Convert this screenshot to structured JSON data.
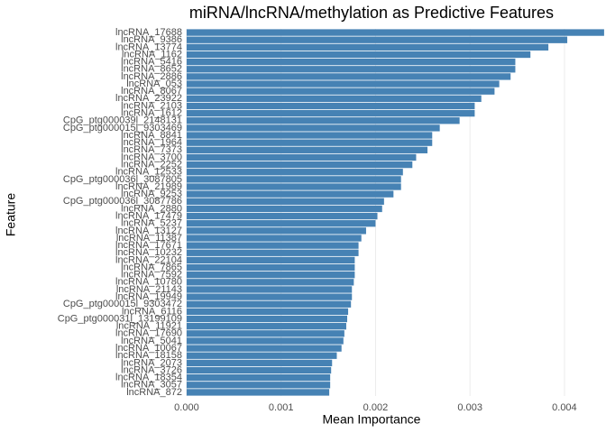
{
  "chart_data": {
    "type": "barh",
    "title": "miRNA/lncRNA/methylation as Predictive Features",
    "xlabel": "Mean Importance",
    "ylabel": "Feature",
    "color": "#4682b4",
    "grid": true,
    "xlim": [
      -0.0002,
      0.00444
    ],
    "xticks": [
      {
        "value": 0,
        "label": "0.000"
      },
      {
        "value": 0.001,
        "label": "0.001"
      },
      {
        "value": 0.002,
        "label": "0.002"
      },
      {
        "value": 0.003,
        "label": "0.003"
      },
      {
        "value": 0.004,
        "label": "0.004"
      }
    ],
    "categories": [
      "lncRNA_17688",
      "lncRNA_9386",
      "lncRNA_13774",
      "lncRNA_1162",
      "lncRNA_5416",
      "lncRNA_8652",
      "lncRNA_2886",
      "lncRNA_053",
      "lncRNA_8067",
      "lncRNA_23922",
      "lncRNA_2103",
      "lncRNA_1612",
      "CpG_ptg000039l_2148131",
      "CpG_ptg000015l_9303469",
      "lncRNA_8841",
      "lncRNA_1964",
      "lncRNA_7373",
      "lncRNA_3700",
      "lncRNA_2252",
      "lncRNA_12533",
      "CpG_ptg000036l_3087805",
      "lncRNA_21989",
      "lncRNA_9253",
      "CpG_ptg000036l_3087786",
      "lncRNA_2880",
      "lncRNA_17479",
      "lncRNA_5237",
      "lncRNA_13127",
      "lncRNA_11387",
      "lncRNA_17671",
      "lncRNA_10232",
      "lncRNA_22104",
      "lncRNA_7865",
      "lncRNA_7592",
      "lncRNA_10780",
      "lncRNA_21143",
      "lncRNA_19949",
      "CpG_ptg000015l_9303472",
      "lncRNA_6116",
      "CpG_ptg000031l_13199109",
      "lncRNA_11921",
      "lncRNA_17690",
      "lncRNA_5041",
      "lncRNA_10067",
      "lncRNA_18158",
      "lncRNA_2073",
      "lncRNA_3726",
      "lncRNA_18354",
      "lncRNA_3057",
      "lncRNA_872"
    ],
    "values": [
      0.00442,
      0.00403,
      0.00383,
      0.00364,
      0.00348,
      0.00348,
      0.00343,
      0.00331,
      0.00326,
      0.00312,
      0.00305,
      0.00305,
      0.00289,
      0.00268,
      0.0026,
      0.0026,
      0.00255,
      0.00243,
      0.00239,
      0.00229,
      0.00227,
      0.00227,
      0.00219,
      0.00209,
      0.00207,
      0.00202,
      0.002,
      0.0019,
      0.00185,
      0.00182,
      0.00182,
      0.00178,
      0.00178,
      0.00178,
      0.00177,
      0.00175,
      0.00175,
      0.00174,
      0.00171,
      0.0017,
      0.00169,
      0.00167,
      0.00166,
      0.00164,
      0.00159,
      0.00154,
      0.00153,
      0.00152,
      0.00152,
      0.00151
    ]
  }
}
